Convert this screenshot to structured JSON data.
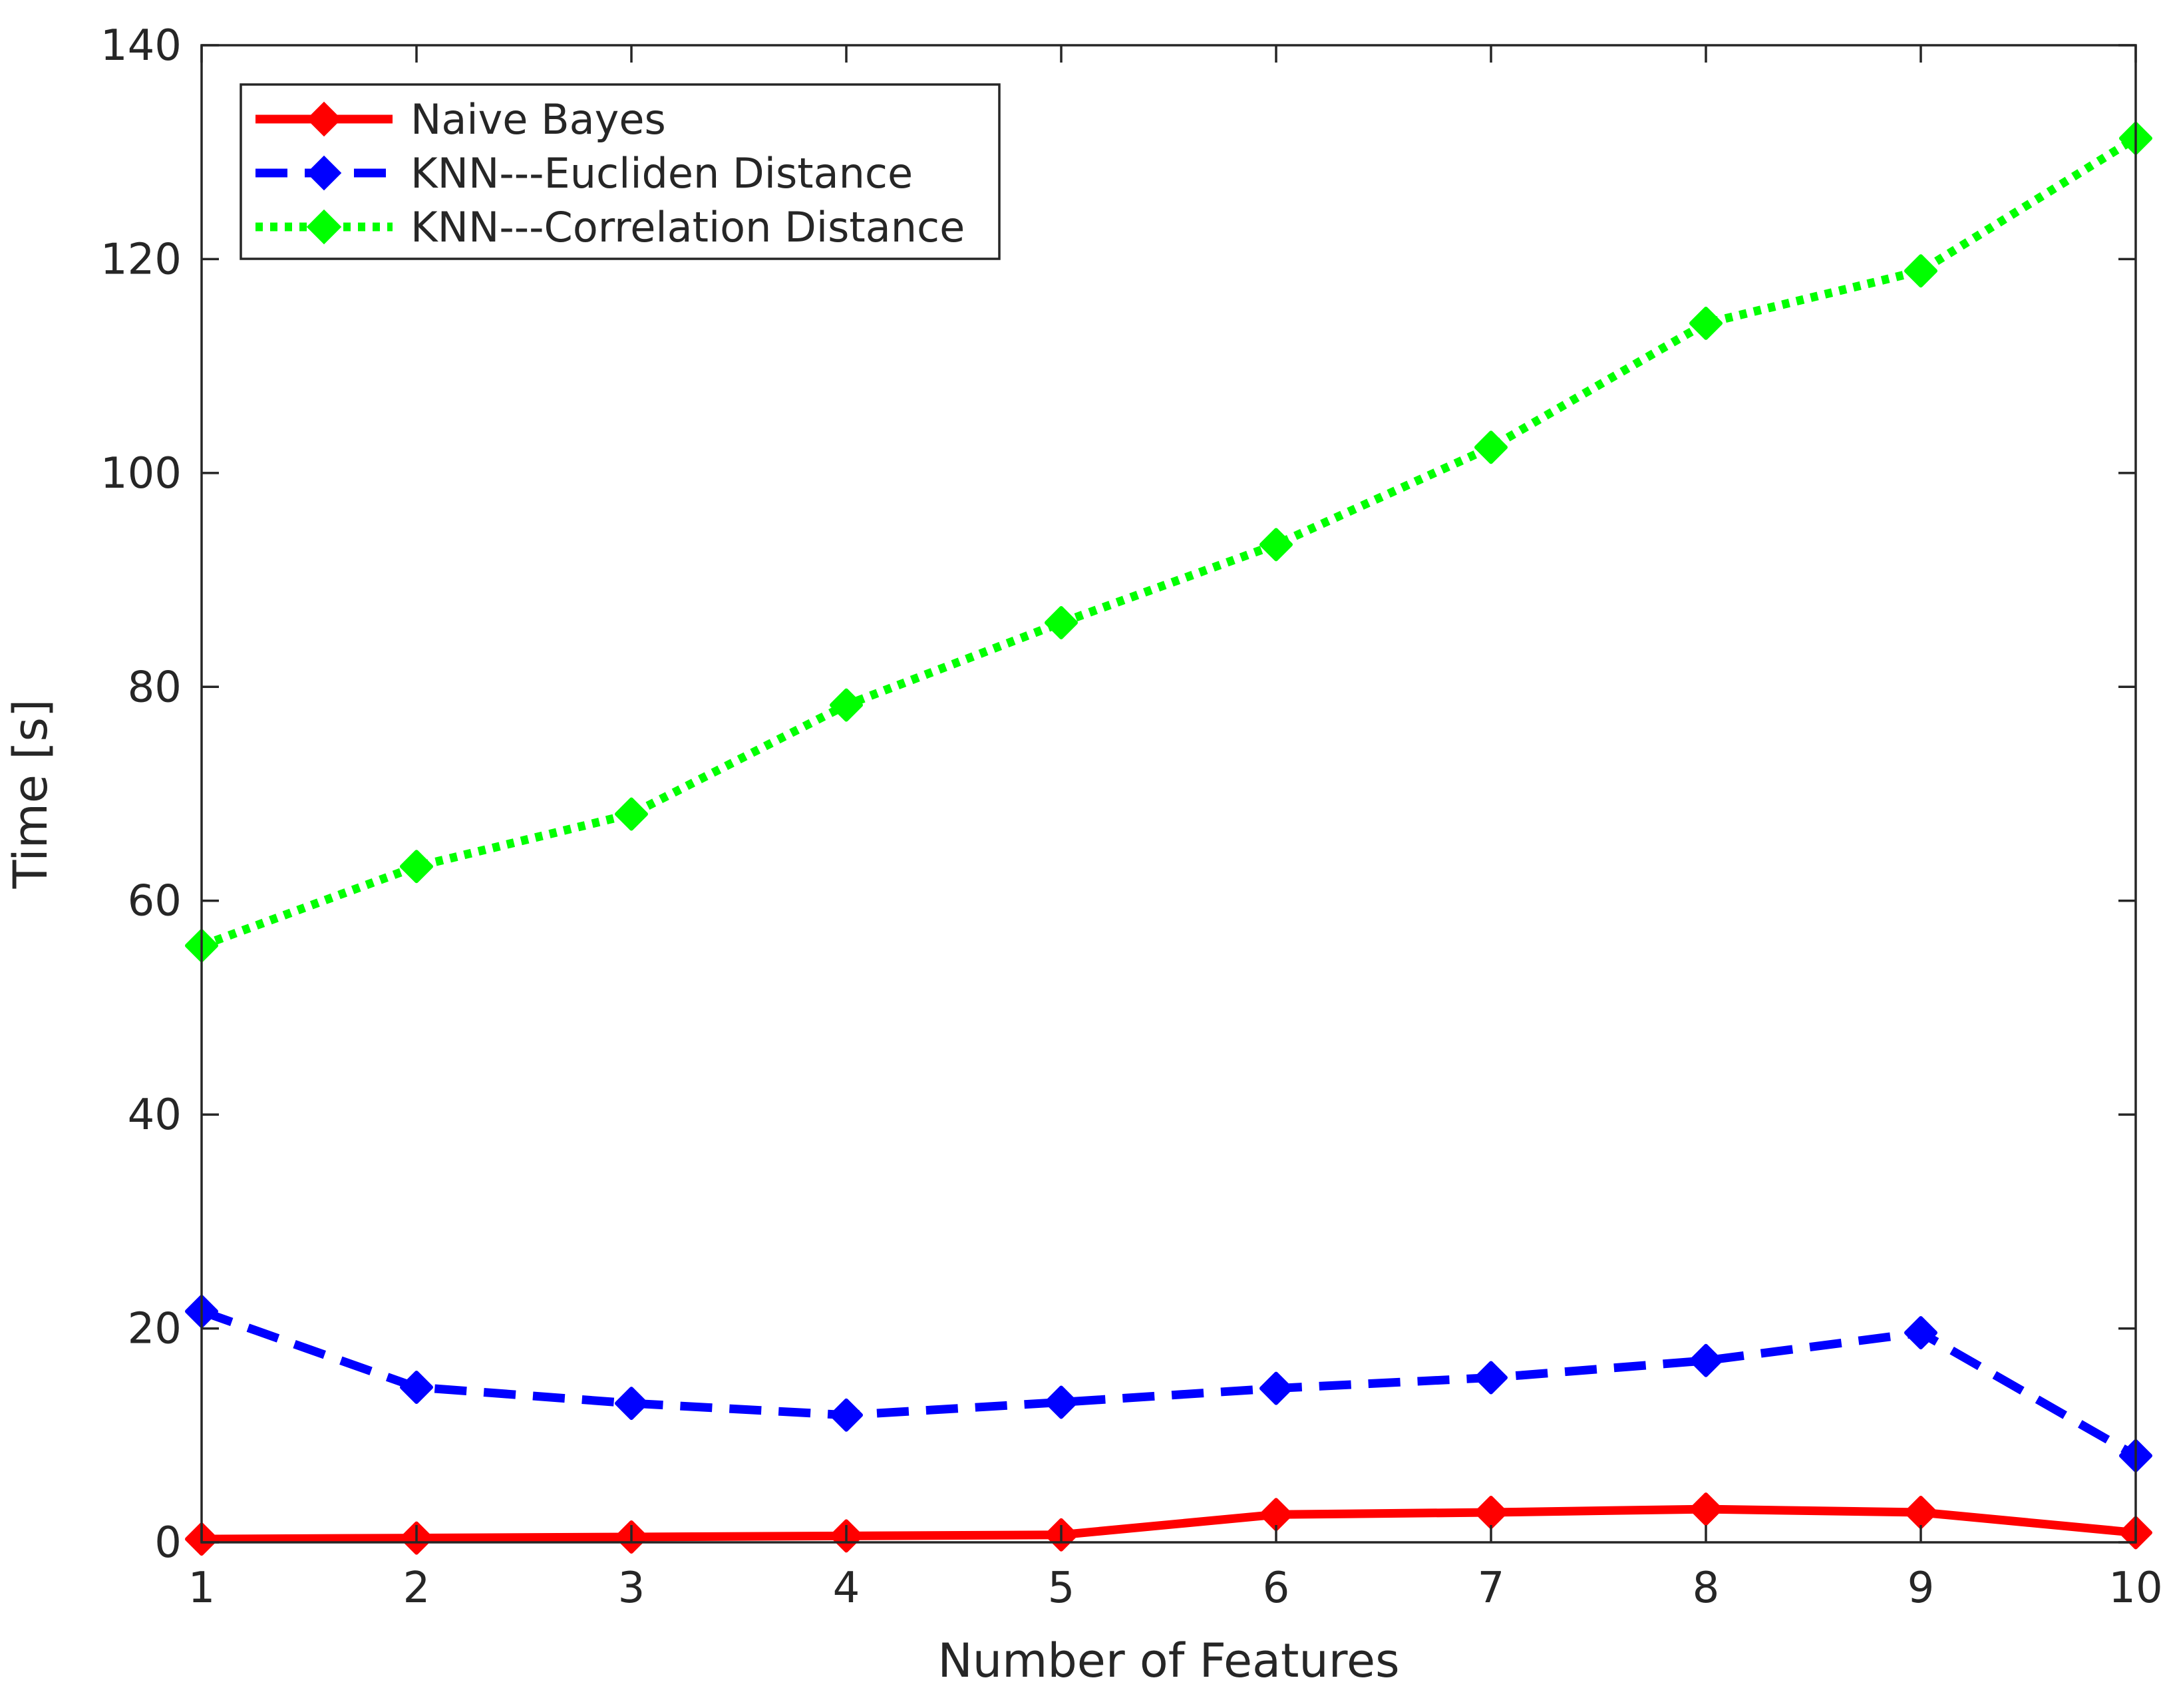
{
  "chart_data": {
    "type": "line",
    "xlabel": "Number of Features",
    "ylabel": "Time [s]",
    "xlim": [
      1,
      10
    ],
    "ylim": [
      0,
      140
    ],
    "x_ticks": [
      1,
      2,
      3,
      4,
      5,
      6,
      7,
      8,
      9,
      10
    ],
    "y_ticks": [
      0,
      20,
      40,
      60,
      80,
      100,
      120,
      140
    ],
    "grid": false,
    "legend": "top-left",
    "x": [
      1,
      2,
      3,
      4,
      5,
      6,
      7,
      8,
      9,
      10
    ],
    "series": [
      {
        "name": "Naive Bayes",
        "color": "#ff0000",
        "line_style": "solid",
        "marker": "diamond",
        "values": [
          0.3,
          0.4,
          0.5,
          0.6,
          0.7,
          2.6,
          2.8,
          3.1,
          2.8,
          0.9
        ]
      },
      {
        "name": "KNN---Eucliden Distance",
        "color": "#0000ff",
        "line_style": "dashed",
        "marker": "diamond",
        "values": [
          21.6,
          14.5,
          13.0,
          11.9,
          13.1,
          14.4,
          15.4,
          17.0,
          19.6,
          8.1
        ]
      },
      {
        "name": "KNN---Correlation Distance",
        "color": "#00ff00",
        "line_style": "dotted",
        "marker": "diamond",
        "values": [
          55.8,
          63.2,
          68.1,
          78.3,
          86.0,
          93.3,
          102.4,
          114.0,
          118.9,
          131.3
        ]
      }
    ]
  }
}
